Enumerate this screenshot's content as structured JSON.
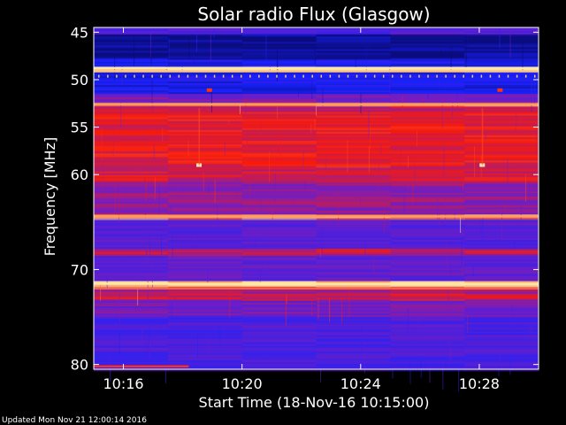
{
  "chart_data": {
    "type": "heatmap",
    "title": "Solar radio Flux (Glasgow)",
    "xlabel": "Start Time (18-Nov-16 10:15:00)",
    "ylabel": "Frequency [MHz]",
    "footer": "Updated Mon Nov 21 12:00:14 2016",
    "x_unit": "minutes since 10:15:00",
    "xlim": [
      0,
      15
    ],
    "ylim": [
      44.5,
      80.5
    ],
    "x_ticks": [
      {
        "value": 1,
        "label": "10:16"
      },
      {
        "value": 5,
        "label": "10:20"
      },
      {
        "value": 9,
        "label": "10:24"
      },
      {
        "value": 13,
        "label": "10:28"
      }
    ],
    "y_ticks": [
      {
        "value": 45,
        "label": "45"
      },
      {
        "value": 50,
        "label": "50"
      },
      {
        "value": 55,
        "label": "55"
      },
      {
        "value": 60,
        "label": "60"
      },
      {
        "value": 70,
        "label": "70"
      },
      {
        "value": 80,
        "label": "80"
      }
    ],
    "colors": {
      "background": "#000000",
      "text": "#ffffff",
      "low": "#0a0a70",
      "mid_blue": "#1a22ff",
      "red": "#ff1a00",
      "bright": "#ffe9a8"
    },
    "bands": [
      {
        "from": 44.5,
        "to": 45.2,
        "intensity": 0.35
      },
      {
        "from": 45.2,
        "to": 47.8,
        "intensity": 0.05
      },
      {
        "from": 47.8,
        "to": 48.6,
        "intensity": 0.2
      },
      {
        "from": 48.6,
        "to": 49.2,
        "intensity": 1.0
      },
      {
        "from": 49.2,
        "to": 51.5,
        "intensity": 0.18
      },
      {
        "from": 51.5,
        "to": 52.4,
        "intensity": 0.45
      },
      {
        "from": 52.4,
        "to": 52.8,
        "intensity": 0.85
      },
      {
        "from": 52.8,
        "to": 53.4,
        "intensity": 0.55
      },
      {
        "from": 53.4,
        "to": 59.2,
        "intensity": 0.62
      },
      {
        "from": 59.2,
        "to": 60.7,
        "intensity": 0.58
      },
      {
        "from": 60.7,
        "to": 64.2,
        "intensity": 0.48
      },
      {
        "from": 64.2,
        "to": 64.6,
        "intensity": 0.88
      },
      {
        "from": 64.6,
        "to": 67.8,
        "intensity": 0.36
      },
      {
        "from": 67.8,
        "to": 68.4,
        "intensity": 0.55
      },
      {
        "from": 68.4,
        "to": 71.2,
        "intensity": 0.38
      },
      {
        "from": 71.2,
        "to": 71.8,
        "intensity": 0.95
      },
      {
        "from": 71.8,
        "to": 72.5,
        "intensity": 0.5
      },
      {
        "from": 72.5,
        "to": 73.2,
        "intensity": 0.58
      },
      {
        "from": 73.2,
        "to": 75.0,
        "intensity": 0.42
      },
      {
        "from": 75.0,
        "to": 80.5,
        "intensity": 0.33
      }
    ],
    "lines": [
      {
        "freq": 48.8,
        "intensity": 1.0
      },
      {
        "freq": 49.1,
        "intensity": 0.95
      },
      {
        "freq": 52.6,
        "intensity": 0.9
      },
      {
        "freq": 64.4,
        "intensity": 0.9
      },
      {
        "freq": 71.5,
        "intensity": 1.0
      },
      {
        "freq": 72.0,
        "intensity": 0.8
      }
    ],
    "bursts": [
      {
        "t": 3.55,
        "freq": 59.0,
        "intensity": 1.0
      },
      {
        "t": 13.1,
        "freq": 59.0,
        "intensity": 1.0
      },
      {
        "t": 3.9,
        "freq": 51.1,
        "intensity": 0.7
      },
      {
        "t": 13.7,
        "freq": 51.1,
        "intensity": 0.7
      }
    ],
    "footer_bar": {
      "t_start": 0.0,
      "t_end": 3.2,
      "freq": 80.2
    }
  }
}
